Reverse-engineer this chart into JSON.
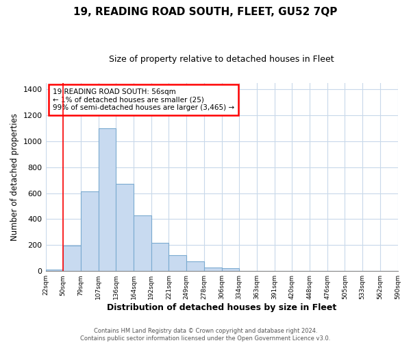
{
  "title": "19, READING ROAD SOUTH, FLEET, GU52 7QP",
  "subtitle": "Size of property relative to detached houses in Fleet",
  "xlabel": "Distribution of detached houses by size in Fleet",
  "ylabel": "Number of detached properties",
  "bar_color": "#c8daf0",
  "bar_edge_color": "#7aaad0",
  "grid_color": "#c8d8ea",
  "background_color": "#ffffff",
  "bin_labels": [
    "22sqm",
    "50sqm",
    "79sqm",
    "107sqm",
    "136sqm",
    "164sqm",
    "192sqm",
    "221sqm",
    "249sqm",
    "278sqm",
    "306sqm",
    "334sqm",
    "363sqm",
    "391sqm",
    "420sqm",
    "448sqm",
    "476sqm",
    "505sqm",
    "533sqm",
    "562sqm",
    "590sqm"
  ],
  "bar_values": [
    10,
    195,
    615,
    1100,
    670,
    430,
    220,
    125,
    75,
    30,
    20,
    0,
    0,
    0,
    0,
    0,
    0,
    0,
    0,
    0
  ],
  "ylim": [
    0,
    1450
  ],
  "yticks": [
    0,
    200,
    400,
    600,
    800,
    1000,
    1200,
    1400
  ],
  "red_line_x": 1.0,
  "annotation_title": "19 READING ROAD SOUTH: 56sqm",
  "annotation_line1": "← 1% of detached houses are smaller (25)",
  "annotation_line2": "99% of semi-detached houses are larger (3,465) →",
  "footer_line1": "Contains HM Land Registry data © Crown copyright and database right 2024.",
  "footer_line2": "Contains public sector information licensed under the Open Government Licence v3.0."
}
